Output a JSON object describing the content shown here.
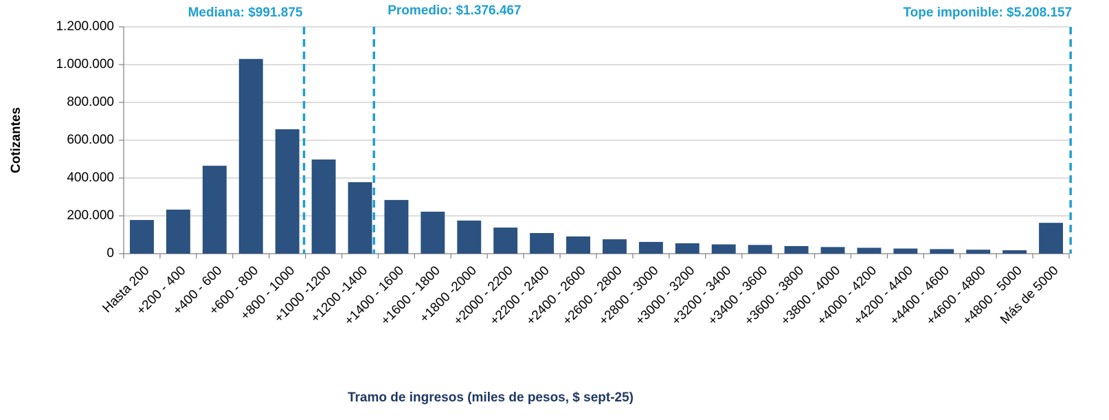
{
  "chart_data": {
    "type": "bar",
    "x_label": "Tramo de ingresos (miles de pesos, $ sept-25)",
    "y_label": "Cotizantes",
    "categories": [
      "Hasta 200",
      "+200 - 400",
      "+400 - 600",
      "+600 - 800",
      "+800 - 1000",
      "+1000 -1200",
      "+1200 -1400",
      "+1400 - 1600",
      "+1600 - 1800",
      "+1800 -2000",
      "+2000 - 2200",
      "+2200 - 2400",
      "+2400 - 2600",
      "+2600 - 2800",
      "+2800 - 3000",
      "+3000 - 3200",
      "+3200 - 3400",
      "+3400 - 3600",
      "+3600 - 3800",
      "+3800 - 4000",
      "+4000 - 4200",
      "+4200 - 4400",
      "+4400 - 4600",
      "+4600 - 4800",
      "+4800 - 5000",
      "Más de 5000"
    ],
    "values": [
      178000,
      233000,
      465000,
      1030000,
      658000,
      498000,
      378000,
      284000,
      222000,
      175000,
      138000,
      109000,
      91000,
      76000,
      62000,
      55000,
      49000,
      46000,
      40000,
      35000,
      31000,
      27000,
      24000,
      21000,
      18000,
      163000
    ],
    "color": "#2b5280",
    "ylim": [
      0,
      1200000
    ],
    "yticks": [
      0,
      {
        "value": 200000,
        "label": "200.000"
      },
      {
        "value": 400000,
        "label": "400.000"
      },
      {
        "value": 600000,
        "label": "600.000"
      },
      {
        "value": 800000,
        "label": "800.000"
      },
      {
        "value": 1000000,
        "label": "1.000.000"
      },
      {
        "value": 1200000,
        "label": "1.200.000"
      }
    ],
    "grid": true,
    "annotations": [
      {
        "label": "Mediana: $991.875",
        "value": 991875
      },
      {
        "label": "Promedio: $1.376.467",
        "value": 1376467
      },
      {
        "label": "Tope imponible: $5.208.157",
        "value": 5208157
      }
    ],
    "annotation_color": "#1f9fd0"
  }
}
